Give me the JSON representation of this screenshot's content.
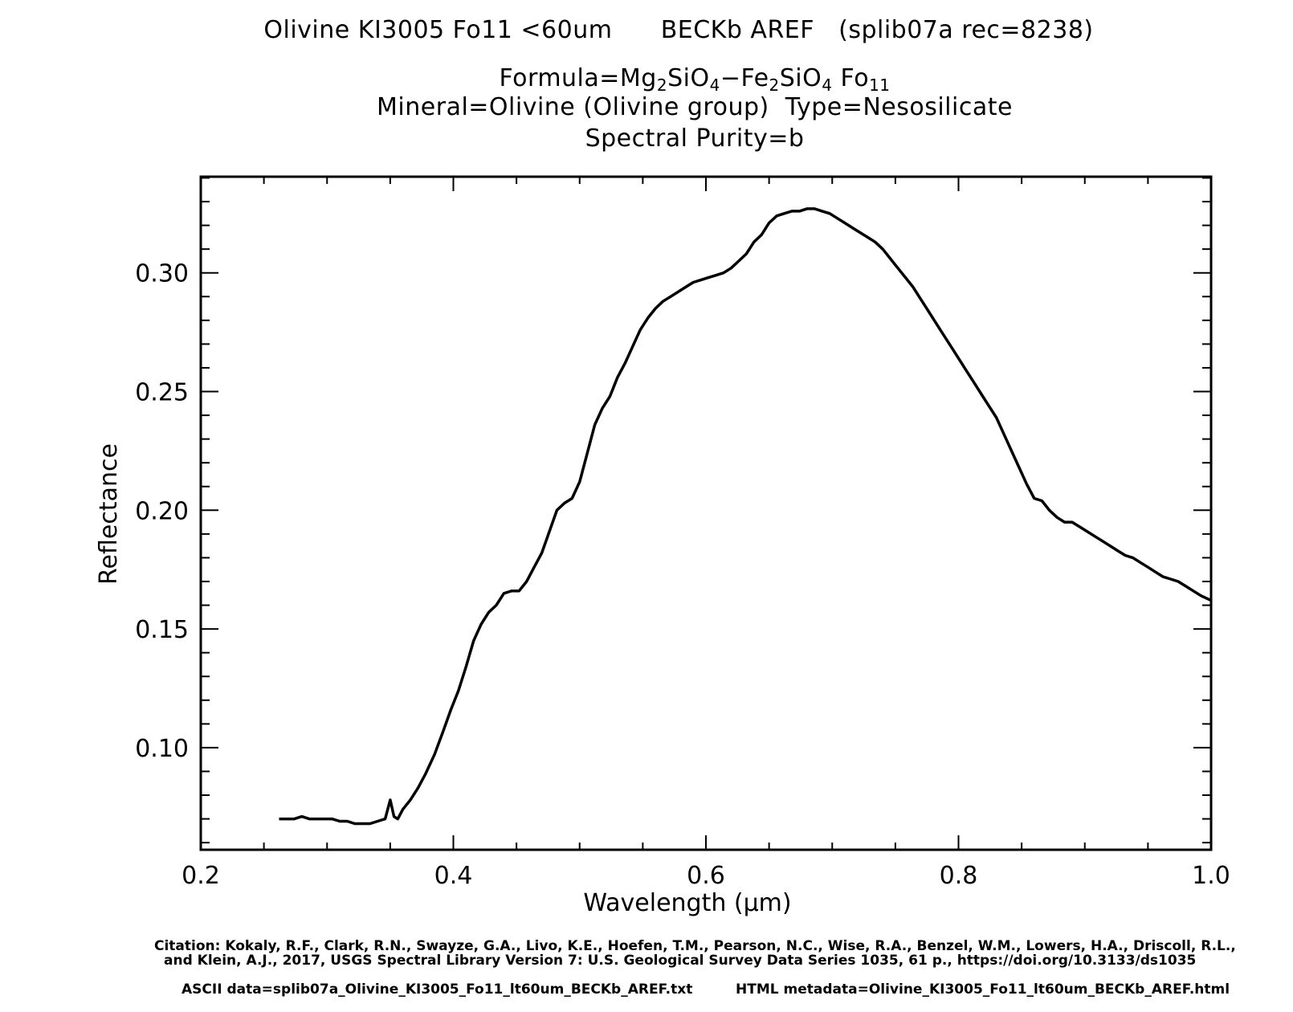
{
  "title": {
    "line1": "Olivine KI3005 Fo11 <60um      BECKb AREF   (splib07a rec=8238)",
    "formula_prefix": "Formula=Mg",
    "formula_sub1": "2",
    "formula_mid1": "SiO",
    "formula_sub2": "4",
    "formula_mid2": "−Fe",
    "formula_sub3": "2",
    "formula_mid3": "SiO",
    "formula_sub4": "4",
    "formula_mid4": " Fo",
    "formula_sub5": "11",
    "mineral_line": "Mineral=Olivine (Olivine group)  Type=Nesosilicate",
    "purity_line": "Spectral Purity=b"
  },
  "footer": {
    "citation_line1": "Citation: Kokaly, R.F., Clark, R.N., Swayze, G.A., Livo, K.E., Hoefen, T.M., Pearson, N.C., Wise, R.A., Benzel, W.M., Lowers, H.A., Driscoll, R.L.,",
    "citation_line2": "and Klein, A.J., 2017, USGS Spectral Library Version 7: U.S. Geological Survey Data Series 1035, 61 p., https://doi.org/10.3133/ds1035",
    "ascii": "ASCII data=splib07a_Olivine_KI3005_Fo11_lt60um_BECKb_AREF.txt",
    "html": "HTML metadata=Olivine_KI3005_Fo11_lt60um_BECKb_AREF.html"
  },
  "chart_data": {
    "type": "line",
    "xlabel": "Wavelength (μm)",
    "ylabel": "Reflectance",
    "xlim": [
      0.2,
      1.0
    ],
    "ylim": [
      0.057,
      0.3405
    ],
    "x_ticks": [
      "0.2",
      "0.4",
      "0.6",
      "0.8",
      "1.0"
    ],
    "y_ticks": [
      "0.10",
      "0.15",
      "0.20",
      "0.25",
      "0.30"
    ],
    "grid": false,
    "line_color": "#000000",
    "series": [
      {
        "x": [
          0.262,
          0.268,
          0.274,
          0.28,
          0.286,
          0.292,
          0.298,
          0.304,
          0.31,
          0.316,
          0.322,
          0.328,
          0.334,
          0.34,
          0.346,
          0.35,
          0.353,
          0.356,
          0.36,
          0.366,
          0.372,
          0.378,
          0.385,
          0.392,
          0.398,
          0.404,
          0.41,
          0.416,
          0.422,
          0.428,
          0.434,
          0.44,
          0.446,
          0.452,
          0.458,
          0.464,
          0.47,
          0.476,
          0.482,
          0.488,
          0.494,
          0.5,
          0.506,
          0.512,
          0.518,
          0.524,
          0.53,
          0.536,
          0.542,
          0.548,
          0.554,
          0.56,
          0.566,
          0.572,
          0.578,
          0.584,
          0.59,
          0.596,
          0.602,
          0.608,
          0.614,
          0.62,
          0.626,
          0.632,
          0.638,
          0.644,
          0.65,
          0.656,
          0.662,
          0.668,
          0.674,
          0.68,
          0.686,
          0.692,
          0.698,
          0.704,
          0.71,
          0.716,
          0.722,
          0.728,
          0.734,
          0.74,
          0.746,
          0.752,
          0.758,
          0.764,
          0.77,
          0.776,
          0.782,
          0.788,
          0.794,
          0.8,
          0.806,
          0.812,
          0.818,
          0.824,
          0.83,
          0.836,
          0.842,
          0.848,
          0.854,
          0.86,
          0.866,
          0.872,
          0.878,
          0.884,
          0.89,
          0.896,
          0.902,
          0.908,
          0.914,
          0.92,
          0.926,
          0.932,
          0.938,
          0.944,
          0.95,
          0.956,
          0.962,
          0.968,
          0.974,
          0.98,
          0.986,
          0.992,
          1.0
        ],
        "y": [
          0.07,
          0.07,
          0.07,
          0.071,
          0.07,
          0.07,
          0.07,
          0.07,
          0.069,
          0.069,
          0.068,
          0.068,
          0.068,
          0.069,
          0.07,
          0.078,
          0.071,
          0.07,
          0.074,
          0.078,
          0.083,
          0.089,
          0.097,
          0.107,
          0.116,
          0.124,
          0.134,
          0.145,
          0.152,
          0.157,
          0.16,
          0.165,
          0.166,
          0.166,
          0.17,
          0.176,
          0.182,
          0.191,
          0.2,
          0.203,
          0.205,
          0.212,
          0.224,
          0.236,
          0.243,
          0.248,
          0.256,
          0.262,
          0.269,
          0.276,
          0.281,
          0.285,
          0.288,
          0.29,
          0.292,
          0.294,
          0.296,
          0.297,
          0.298,
          0.299,
          0.3,
          0.302,
          0.305,
          0.308,
          0.313,
          0.316,
          0.321,
          0.324,
          0.325,
          0.326,
          0.326,
          0.327,
          0.327,
          0.326,
          0.325,
          0.323,
          0.321,
          0.319,
          0.317,
          0.315,
          0.313,
          0.31,
          0.306,
          0.302,
          0.298,
          0.294,
          0.289,
          0.284,
          0.279,
          0.274,
          0.269,
          0.264,
          0.259,
          0.254,
          0.249,
          0.244,
          0.239,
          0.232,
          0.225,
          0.218,
          0.211,
          0.205,
          0.204,
          0.2,
          0.197,
          0.195,
          0.195,
          0.193,
          0.191,
          0.189,
          0.187,
          0.185,
          0.183,
          0.181,
          0.18,
          0.178,
          0.176,
          0.174,
          0.172,
          0.171,
          0.17,
          0.168,
          0.166,
          0.164,
          0.162
        ]
      }
    ]
  }
}
